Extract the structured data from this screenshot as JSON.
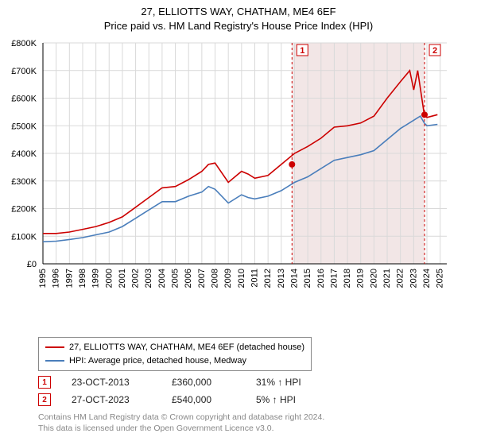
{
  "title_line1": "27, ELLIOTTS WAY, CHATHAM, ME4 6EF",
  "title_line2": "Price paid vs. HM Land Registry's House Price Index (HPI)",
  "chart": {
    "type": "line",
    "background_color": "#ffffff",
    "grid_color": "#d9d9d9",
    "plot_border_color": "#888888",
    "shade_color": "#f2e6e6",
    "x_years": [
      1995,
      1996,
      1997,
      1998,
      1999,
      2000,
      2001,
      2002,
      2003,
      2004,
      2005,
      2006,
      2007,
      2008,
      2009,
      2010,
      2011,
      2012,
      2013,
      2014,
      2015,
      2016,
      2017,
      2018,
      2019,
      2020,
      2021,
      2022,
      2023,
      2024,
      2025
    ],
    "xlim": [
      1995,
      2025.5
    ],
    "ylim": [
      0,
      800
    ],
    "ytick_step": 100,
    "ytick_prefix": "£",
    "ytick_suffix": "K",
    "label_fontsize": 11,
    "line_width": 1.6,
    "series": [
      {
        "name": "property",
        "color": "#cc0000",
        "values": [
          110,
          110,
          115,
          125,
          135,
          150,
          170,
          205,
          240,
          275,
          280,
          305,
          335,
          360,
          365,
          295,
          335,
          325,
          310,
          320,
          360,
          400,
          425,
          455,
          495,
          500,
          510,
          535,
          600,
          660,
          700,
          630,
          700,
          540,
          530,
          540
        ],
        "x": [
          1995,
          1996,
          1997,
          1998,
          1999,
          2000,
          2001,
          2002,
          2003,
          2004,
          2005,
          2006,
          2007,
          2007.5,
          2008,
          2009,
          2010,
          2010.5,
          2011,
          2012,
          2013,
          2014,
          2015,
          2016,
          2017,
          2018,
          2019,
          2020,
          2021,
          2022,
          2022.7,
          2023,
          2023.3,
          2023.8,
          2024,
          2024.8
        ]
      },
      {
        "name": "hpi",
        "color": "#4a7ebb",
        "values": [
          80,
          82,
          88,
          95,
          105,
          115,
          135,
          165,
          195,
          225,
          225,
          245,
          260,
          280,
          270,
          220,
          250,
          240,
          235,
          245,
          265,
          295,
          315,
          345,
          375,
          385,
          395,
          410,
          450,
          490,
          520,
          535,
          510,
          500,
          505
        ],
        "x": [
          1995,
          1996,
          1997,
          1998,
          1999,
          2000,
          2001,
          2002,
          2003,
          2004,
          2005,
          2006,
          2007,
          2007.5,
          2008,
          2009,
          2010,
          2010.5,
          2011,
          2012,
          2013,
          2014,
          2015,
          2016,
          2017,
          2018,
          2019,
          2020,
          2021,
          2022,
          2023,
          2023.5,
          2023.8,
          2024,
          2024.8
        ]
      }
    ],
    "sale_markers": [
      {
        "n": "1",
        "x": 2013.81,
        "y": 360,
        "color": "#cc0000"
      },
      {
        "n": "2",
        "x": 2023.82,
        "y": 540,
        "color": "#cc0000"
      }
    ],
    "marker_box_border": "#cc0000",
    "marker_box_bg": "#ffffff",
    "marker_dashed_color": "#cc0000",
    "sale_dot_radius": 4
  },
  "legend": {
    "items": [
      {
        "color": "#cc0000",
        "label": "27, ELLIOTTS WAY, CHATHAM, ME4 6EF (detached house)"
      },
      {
        "color": "#4a7ebb",
        "label": "HPI: Average price, detached house, Medway"
      }
    ]
  },
  "sales": [
    {
      "n": "1",
      "date": "23-OCT-2013",
      "price": "£360,000",
      "diff": "31% ↑ HPI",
      "border": "#cc0000",
      "text": "#cc0000"
    },
    {
      "n": "2",
      "date": "27-OCT-2023",
      "price": "£540,000",
      "diff": "5% ↑ HPI",
      "border": "#cc0000",
      "text": "#cc0000"
    }
  ],
  "footer_line1": "Contains HM Land Registry data © Crown copyright and database right 2024.",
  "footer_line2": "This data is licensed under the Open Government Licence v3.0."
}
